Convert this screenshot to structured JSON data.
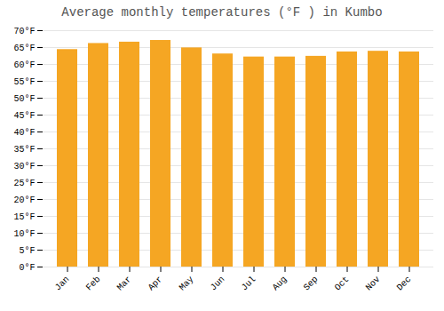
{
  "chart_data": {
    "type": "bar",
    "title": "Average monthly temperatures (°F ) in Kumbo",
    "categories": [
      "Jan",
      "Feb",
      "Mar",
      "Apr",
      "May",
      "Jun",
      "Jul",
      "Aug",
      "Sep",
      "Oct",
      "Nov",
      "Dec"
    ],
    "values": [
      64.4,
      66.2,
      66.6,
      67.1,
      64.9,
      63.1,
      62.2,
      62.2,
      62.4,
      63.7,
      63.9,
      63.7
    ],
    "color": "#F5A623",
    "ylim": [
      0,
      70
    ],
    "yticks": [
      {
        "value": 0,
        "label": "0°F"
      },
      {
        "value": 5,
        "label": "5°F"
      },
      {
        "value": 10,
        "label": "10°F"
      },
      {
        "value": 15,
        "label": "15°F"
      },
      {
        "value": 20,
        "label": "20°F"
      },
      {
        "value": 25,
        "label": "25°F"
      },
      {
        "value": 30,
        "label": "30°F"
      },
      {
        "value": 35,
        "label": "35°F"
      },
      {
        "value": 40,
        "label": "40°F"
      },
      {
        "value": 45,
        "label": "45°F"
      },
      {
        "value": 50,
        "label": "50°F"
      },
      {
        "value": 55,
        "label": "55°F"
      },
      {
        "value": 60,
        "label": "60°F"
      },
      {
        "value": 65,
        "label": "65°F"
      },
      {
        "value": 70,
        "label": "70°F"
      }
    ],
    "grid": true
  }
}
